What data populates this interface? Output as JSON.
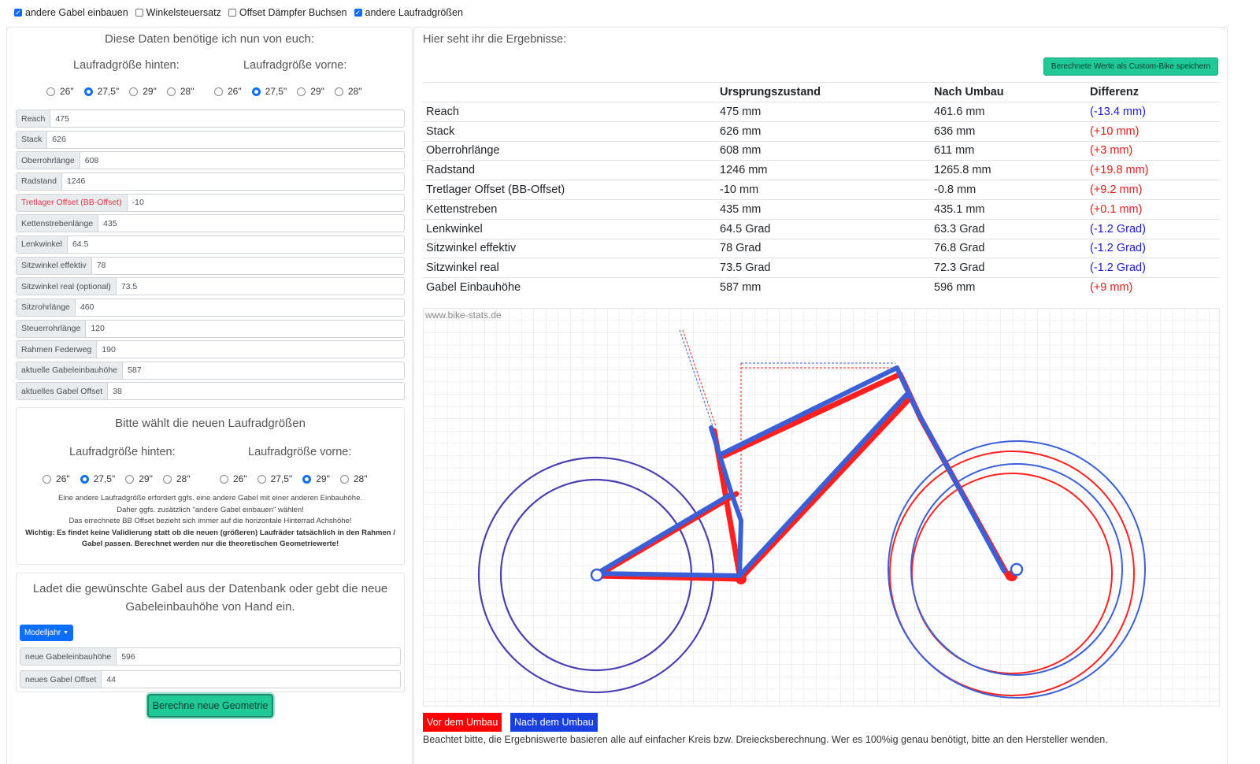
{
  "top_options": [
    {
      "label": "andere Gabel einbauen",
      "checked": true
    },
    {
      "label": "Winkelsteuersatz",
      "checked": false
    },
    {
      "label": "Offset Dämpfer Buchsen",
      "checked": false
    },
    {
      "label": "andere Laufradgrößen",
      "checked": true
    }
  ],
  "left": {
    "title": "Diese Daten benötige ich nun von euch:",
    "rear_wheel_label": "Laufradgröße hinten:",
    "front_wheel_label": "Laufradgröße vorne:",
    "wheel_sizes": [
      "26\"",
      "27,5\"",
      "29\"",
      "28\""
    ],
    "rear_selected": "27,5\"",
    "front_selected": "27,5\"",
    "fields": [
      {
        "label": "Reach",
        "value": "475"
      },
      {
        "label": "Stack",
        "value": "626"
      },
      {
        "label": "Oberrohrlänge",
        "value": "608"
      },
      {
        "label": "Radstand",
        "value": "1246"
      },
      {
        "label": "Tretlager Offset (BB-Offset)",
        "value": "-10"
      },
      {
        "label": "Kettenstrebenlänge",
        "value": "435"
      },
      {
        "label": "Lenkwinkel",
        "value": "64.5"
      },
      {
        "label": "Sitzwinkel effektiv",
        "value": "78"
      },
      {
        "label": "Sitzwinkel real (optional)",
        "value": "73.5"
      },
      {
        "label": "Sitzrohrlänge",
        "value": "460"
      },
      {
        "label": "Steuerrohrlänge",
        "value": "120"
      },
      {
        "label": "Rahmen Federweg",
        "value": "190"
      },
      {
        "label": "aktuelle Gabeleinbauhöhe",
        "value": "587"
      },
      {
        "label": "aktuelles Gabel Offset",
        "value": "38"
      }
    ],
    "new_wheels": {
      "title": "Bitte wählt die neuen Laufradgrößen",
      "rear_label": "Laufradgröße hinten:",
      "front_label": "Laufradgröße vorne:",
      "rear_selected": "27,5\"",
      "front_selected": "29\"",
      "note_lines": [
        "Eine andere Laufradgröße erfordert ggfs. eine andere Gabel mit einer anderen Einbauhöhe.",
        "Daher ggfs. zusätzlich \"andere Gabel einbauen\" wählen!",
        "Das errechnete BB Offset bezieht sich immer auf die horizontale Hinterrad Achshöhe!"
      ],
      "warning_line1": "Wichtig: Es findet keine Validierung statt ob die neuen (größeren) Laufräder tatsächlich in den Rahmen /",
      "warning_line2": "Gabel passen. Berechnet werden nur die theoretischen Geometriewerte!"
    },
    "fork": {
      "title_line1": "Ladet die gewünschte Gabel aus der Datenbank oder gebt die neue",
      "title_line2": "Gabeleinbauhöhe von Hand ein.",
      "dropdown": "Modelljahr",
      "fields": [
        {
          "label": "neue Gabeleinbauhöhe",
          "value": "596"
        },
        {
          "label": "neues Gabel Offset",
          "value": "44"
        }
      ]
    },
    "calc_button": "Berechne neue Geometrie"
  },
  "right": {
    "title": "Hier seht ihr die Ergebnisse:",
    "save_button": "Berechnete Werte als Custom-Bike speichern",
    "headers": [
      "",
      "Ursprungszustand",
      "Nach Umbau",
      "Differenz"
    ],
    "rows": [
      [
        "Reach",
        "475 mm",
        "461.6 mm",
        "(-13.4 mm)"
      ],
      [
        "Stack",
        "626 mm",
        "636 mm",
        "(+10 mm)"
      ],
      [
        "Oberrohrlänge",
        "608 mm",
        "611 mm",
        "(+3 mm)"
      ],
      [
        "Radstand",
        "1246 mm",
        "1265.8 mm",
        "(+19.8 mm)"
      ],
      [
        "Tretlager Offset (BB-Offset)",
        "-10 mm",
        "-0.8 mm",
        "(+9.2 mm)"
      ],
      [
        "Kettenstreben",
        "435 mm",
        "435.1 mm",
        "(+0.1 mm)"
      ],
      [
        "Lenkwinkel",
        "64.5 Grad",
        "63.3 Grad",
        "(-1.2 Grad)"
      ],
      [
        "Sitzwinkel effektiv",
        "78 Grad",
        "76.8 Grad",
        "(-1.2 Grad)"
      ],
      [
        "Sitzwinkel real",
        "73.5 Grad",
        "72.3 Grad",
        "(-1.2 Grad)"
      ],
      [
        "Gabel Einbauhöhe",
        "587 mm",
        "596 mm",
        "(+9 mm)"
      ]
    ],
    "watermark": "www.bike-stats.de",
    "legend_before": "Vor dem Umbau",
    "legend_after": "Nach dem Umbau",
    "footnote": "Beachtet bitte, die Ergebniswerte basieren alle auf einfacher Kreis bzw. Dreiecksberechnung. Wer es 100%ig genau benötigt, bitte an den Hersteller wenden.",
    "colors": {
      "before": "#ff2020",
      "after": "#3a5fd6"
    }
  }
}
